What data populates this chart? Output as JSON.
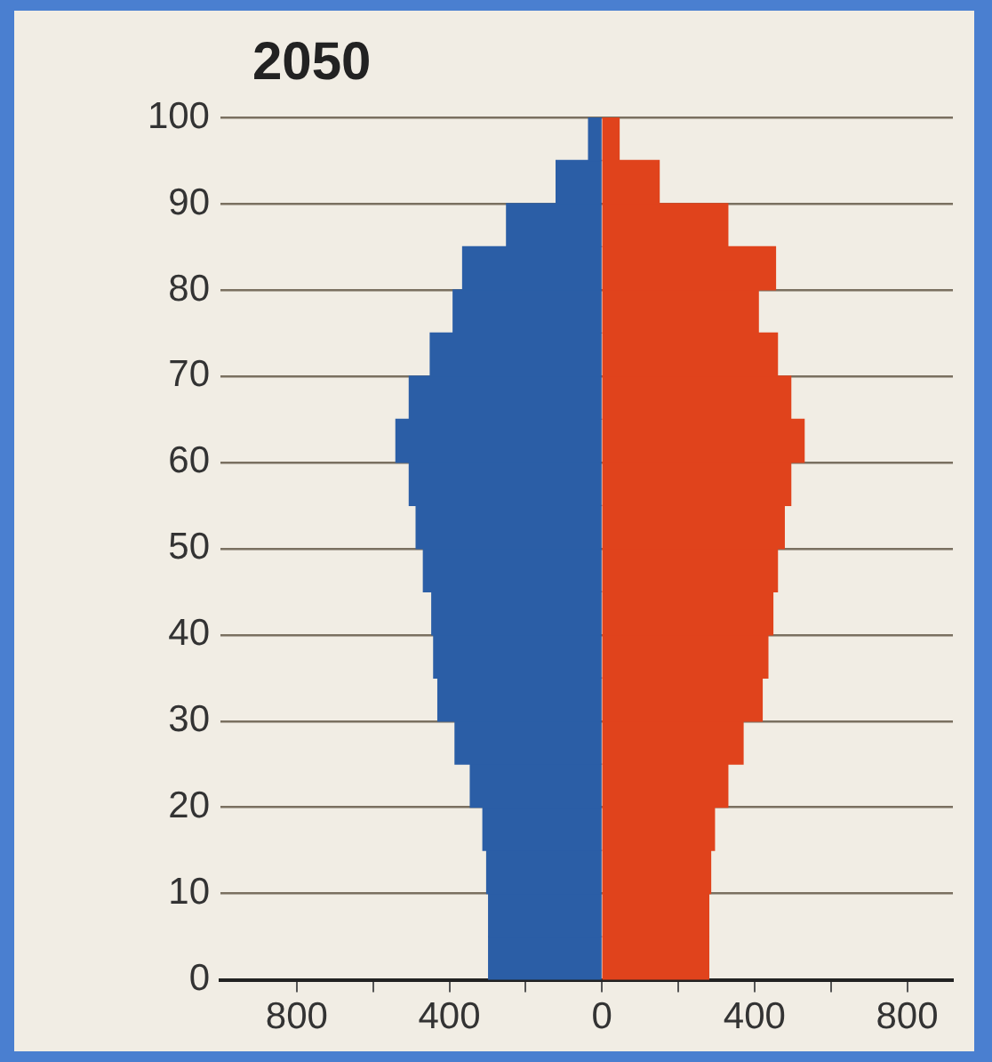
{
  "chart_data": {
    "type": "bar",
    "title": "2050",
    "orientation": "horizontal",
    "stacked": true,
    "x": [
      2.5,
      7.5,
      12.5,
      17.5,
      22.5,
      27.5,
      32.5,
      37.5,
      42.5,
      47.5,
      52.5,
      57.5,
      62.5,
      67.5,
      72.5,
      77.5,
      82.5,
      87.5,
      92.5,
      97.5
    ],
    "series": [
      {
        "color": "#2b5ea6",
        "values": [
          -297,
          -297,
          -302,
          -312,
          -345,
          -385,
          -430,
          -441,
          -446,
          -468,
          -487,
          -505,
          -540,
          -505,
          -450,
          -390,
          -365,
          -250,
          -120,
          -35
        ]
      },
      {
        "color": "#e0431c",
        "values": [
          280,
          280,
          285,
          295,
          330,
          370,
          420,
          435,
          448,
          460,
          478,
          495,
          530,
          495,
          460,
          410,
          455,
          330,
          150,
          45
        ]
      }
    ],
    "xlim": [
      -1000,
      920
    ],
    "xticks": [
      {
        "value": -800,
        "label": "800"
      },
      {
        "value": -600,
        "label": null
      },
      {
        "value": -400,
        "label": "400"
      },
      {
        "value": -200,
        "label": null
      },
      0,
      {
        "value": 200,
        "label": null
      },
      {
        "value": 400,
        "label": "400"
      },
      {
        "value": 600,
        "label": null
      },
      {
        "value": 800,
        "label": "800"
      }
    ],
    "ylim": [
      0,
      100
    ],
    "yticks": [
      0,
      10,
      20,
      30,
      40,
      50,
      60,
      70,
      80,
      90,
      100
    ],
    "grid": "y",
    "legend": false
  }
}
